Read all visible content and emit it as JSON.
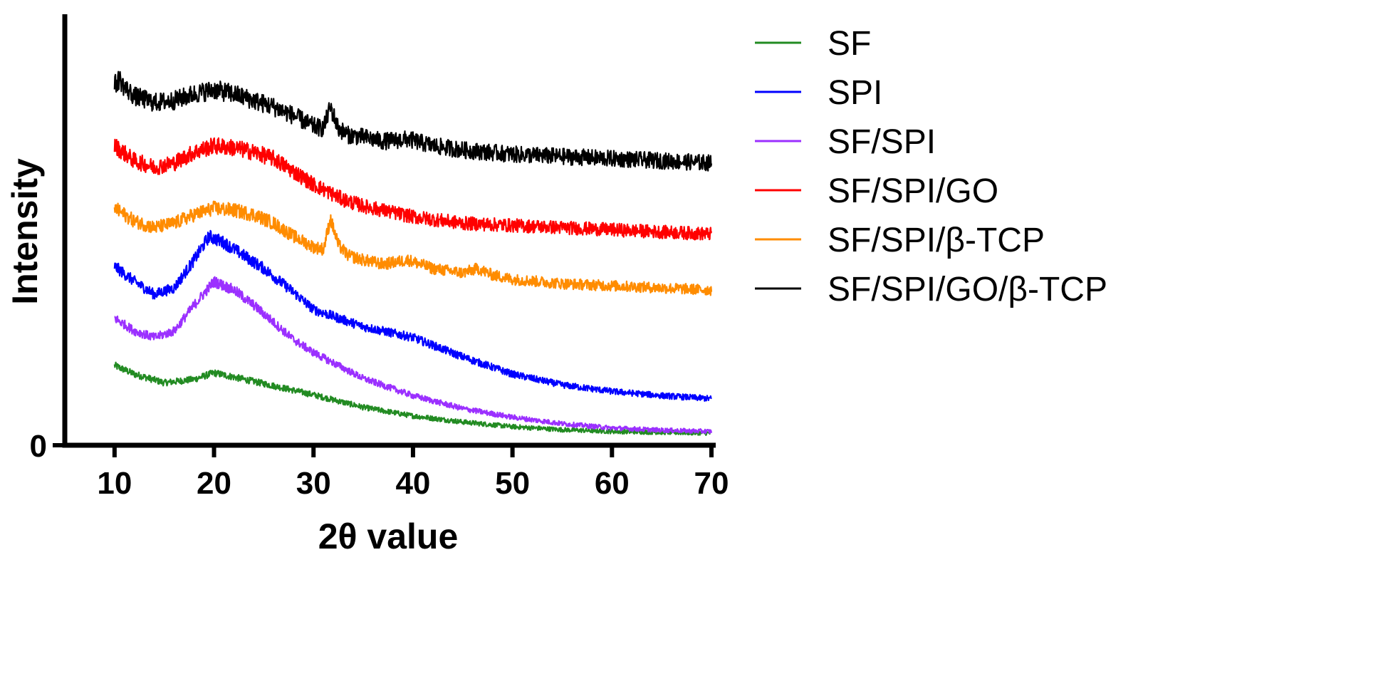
{
  "chart_data": {
    "type": "line",
    "title": "",
    "xlabel": "2θ value",
    "ylabel": "Intensity",
    "xlim": [
      5,
      70
    ],
    "ylim": [
      0,
      100
    ],
    "xticks": [
      10,
      20,
      30,
      40,
      50,
      60,
      70
    ],
    "yticks": [
      0
    ],
    "ytick_labels": [
      "0"
    ],
    "legend_position": "right",
    "series": [
      {
        "name": "SF",
        "color": "#228B22",
        "x": [
          10,
          12,
          15,
          18,
          20,
          22,
          25,
          30,
          35,
          40,
          45,
          50,
          55,
          60,
          65,
          70
        ],
        "y": [
          18.5,
          16.5,
          14.5,
          15.3,
          16.8,
          15.8,
          14.3,
          11.7,
          8.8,
          6.8,
          5.4,
          4.3,
          3.6,
          3.2,
          3.0,
          2.8
        ]
      },
      {
        "name": "SPI",
        "color": "#0000FF",
        "x": [
          10,
          12,
          14,
          16,
          18,
          19.5,
          21,
          23,
          25,
          28,
          30,
          35,
          40,
          45,
          50,
          55,
          60,
          65,
          70
        ],
        "y": [
          41.5,
          38,
          35,
          36.5,
          43,
          48.5,
          47,
          44,
          41,
          35.5,
          31.5,
          27.5,
          25,
          20.5,
          16.5,
          14,
          12.5,
          11.5,
          10.8
        ]
      },
      {
        "name": "SF/SPI",
        "color": "#9B30FF",
        "x": [
          10,
          12,
          14,
          16,
          18,
          20,
          22,
          24,
          26,
          28,
          30,
          35,
          40,
          45,
          50,
          55,
          60,
          65,
          70
        ],
        "y": [
          29.5,
          26.5,
          25,
          26.5,
          32.5,
          38,
          36,
          32.5,
          28.5,
          24.5,
          21.5,
          15.5,
          11.5,
          8.5,
          6.5,
          5,
          4,
          3.5,
          3.2
        ]
      },
      {
        "name": "SF/SPI/GO",
        "color": "#FF0000",
        "x": [
          10,
          12,
          14,
          16,
          18,
          20,
          22,
          24,
          26,
          28,
          30,
          33,
          35,
          40,
          45,
          50,
          55,
          60,
          65,
          70
        ],
        "y": [
          69.5,
          66,
          64.5,
          65.5,
          68,
          69.5,
          69,
          68,
          66.5,
          63.5,
          60.5,
          57,
          55.5,
          53,
          51.5,
          51,
          50.5,
          50,
          49.5,
          49
        ]
      },
      {
        "name": "SF/SPI/β-TCP",
        "color": "#FF8C00",
        "x": [
          10,
          12,
          14,
          16,
          18,
          20,
          22,
          24,
          26,
          28,
          30,
          31,
          31.7,
          32.5,
          33.5,
          35,
          37,
          39.5,
          42,
          45,
          46.5,
          48,
          50,
          55,
          60,
          65,
          70
        ],
        "y": [
          55,
          52,
          50.5,
          51.5,
          53.5,
          55,
          54.5,
          53.5,
          51.5,
          48.5,
          46,
          45.5,
          52.5,
          46.5,
          44,
          43,
          42,
          43,
          41,
          40,
          41,
          39.5,
          38.5,
          37.5,
          37,
          36.5,
          36
        ]
      },
      {
        "name": "SF/SPI/GO/β-TCP",
        "color": "#000000",
        "x": [
          10,
          10.5,
          11,
          12,
          14,
          16,
          18,
          20,
          22,
          24,
          26,
          28,
          30,
          31,
          31.7,
          32.5,
          33.5,
          35,
          37,
          39.5,
          42,
          45,
          50,
          55,
          60,
          65,
          70
        ],
        "y": [
          83.5,
          85,
          83,
          81,
          79.5,
          80,
          81.5,
          82.5,
          81.5,
          80,
          78.5,
          76.5,
          74,
          73.5,
          78.5,
          73.5,
          72,
          71.5,
          70.5,
          71,
          69.5,
          68.5,
          67.5,
          67,
          66.5,
          66,
          65.5
        ]
      }
    ]
  }
}
